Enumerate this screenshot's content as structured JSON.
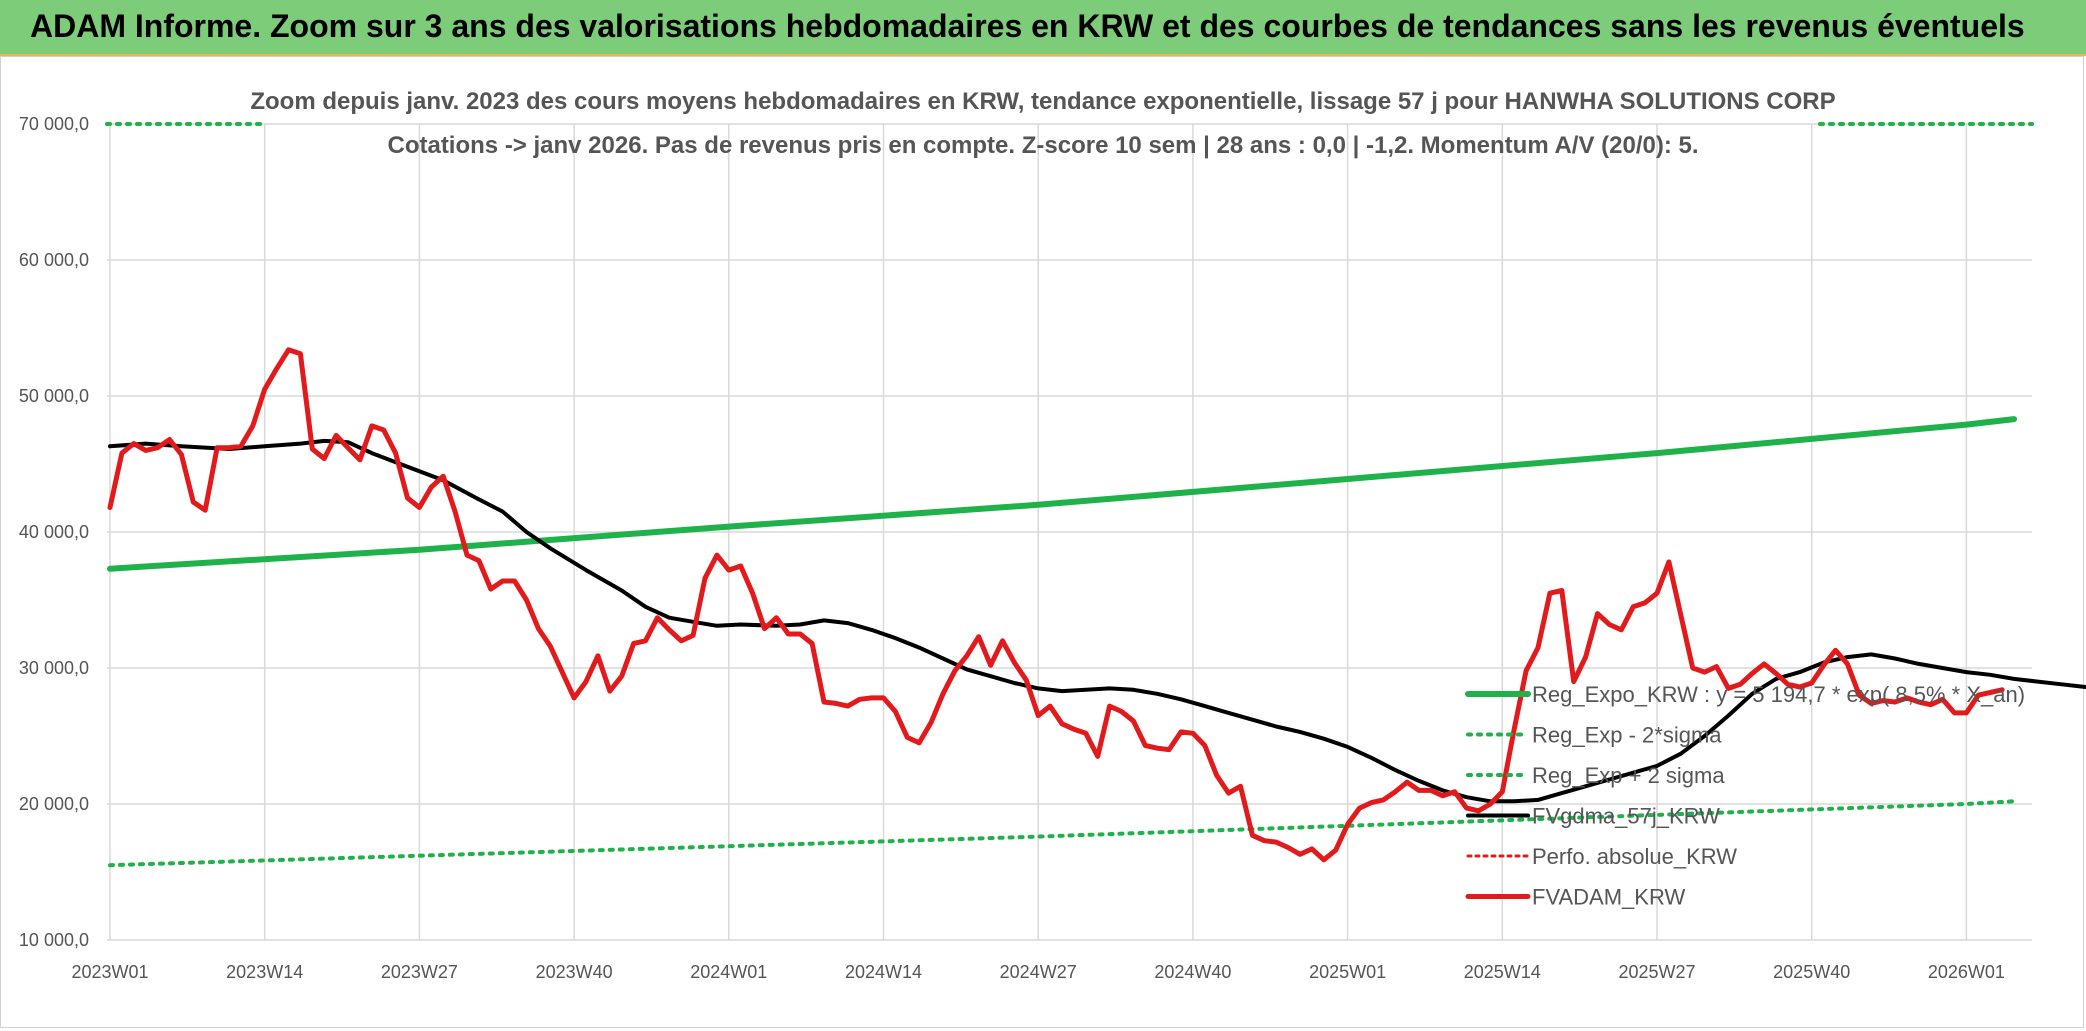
{
  "banner": {
    "title": "ADAM Informe. Zoom sur 3 ans des valorisations hebdomadaires en KRW et des courbes de tendances sans les revenus éventuels"
  },
  "colors": {
    "banner_bg": "#7ccc7a",
    "reg_expo": "#1fb14a",
    "reg_band": "#1fb14a",
    "fvgdma": "#000000",
    "perfo": "#e31a1c",
    "fvadam": "#e31a1c"
  },
  "chart_data": {
    "type": "line",
    "title_lines": [
      "Zoom depuis janv. 2023 des cours moyens hebdomadaires en KRW, tendance exponentielle, lissage 57 j pour HANWHA SOLUTIONS CORP",
      "Cotations -> janv 2026. Pas de revenus pris en compte. Z-score 10 sem | 28 ans : 0,0 | -1,2. Momentum A/V (20/0): 5."
    ],
    "x_tick_labels": [
      "2023W01",
      "2023W14",
      "2023W27",
      "2023W40",
      "2024W01",
      "2024W14",
      "2024W27",
      "2024W40",
      "2025W01",
      "2025W14",
      "2025W27",
      "2025W40",
      "2026W01"
    ],
    "y_tick_labels": [
      "10 000,0",
      "20 000,0",
      "30 000,0",
      "40 000,0",
      "50 000,0",
      "60 000,0",
      "70 000,0"
    ],
    "ylim": [
      10000,
      70000
    ],
    "x_range_weeks": [
      0,
      160
    ],
    "grid": true,
    "legend_position": "right",
    "series": [
      {
        "name": "Reg_Expo_KRW : y = 5 194,7 * exp( 8,5% * X_an)",
        "style": "solid-thick",
        "points": [
          [
            0,
            37300
          ],
          [
            26,
            38700
          ],
          [
            52,
            40400
          ],
          [
            78,
            42000
          ],
          [
            104,
            43900
          ],
          [
            130,
            45800
          ],
          [
            156,
            47900
          ],
          [
            160,
            48300
          ]
        ]
      },
      {
        "name": "Reg_Exp - 2*sigma",
        "style": "dotted",
        "points": [
          [
            0,
            15500
          ],
          [
            26,
            16200
          ],
          [
            52,
            16900
          ],
          [
            78,
            17600
          ],
          [
            104,
            18400
          ],
          [
            130,
            19200
          ],
          [
            156,
            20000
          ],
          [
            160,
            20200
          ]
        ]
      },
      {
        "name": "Reg_Exp + 2 sigma",
        "style": "dotted",
        "points": [
          [
            0,
            70000
          ],
          [
            160,
            70000
          ]
        ]
      },
      {
        "name": "FVgdma_57j_KRW",
        "style": "solid",
        "points": [
          [
            0,
            46300
          ],
          [
            3,
            46500
          ],
          [
            6,
            46300
          ],
          [
            10,
            46100
          ],
          [
            13,
            46300
          ],
          [
            16,
            46500
          ],
          [
            18,
            46700
          ],
          [
            20,
            46600
          ],
          [
            22,
            45800
          ],
          [
            25,
            44800
          ],
          [
            28,
            43800
          ],
          [
            31,
            42400
          ],
          [
            33,
            41500
          ],
          [
            35,
            40000
          ],
          [
            37,
            38800
          ],
          [
            40,
            37200
          ],
          [
            43,
            35700
          ],
          [
            45,
            34500
          ],
          [
            47,
            33700
          ],
          [
            49,
            33400
          ],
          [
            51,
            33100
          ],
          [
            53,
            33200
          ],
          [
            56,
            33100
          ],
          [
            58,
            33200
          ],
          [
            60,
            33500
          ],
          [
            62,
            33300
          ],
          [
            64,
            32800
          ],
          [
            66,
            32200
          ],
          [
            68,
            31500
          ],
          [
            70,
            30700
          ],
          [
            72,
            29900
          ],
          [
            74,
            29400
          ],
          [
            76,
            28900
          ],
          [
            78,
            28500
          ],
          [
            80,
            28300
          ],
          [
            82,
            28400
          ],
          [
            84,
            28500
          ],
          [
            86,
            28400
          ],
          [
            88,
            28100
          ],
          [
            90,
            27700
          ],
          [
            92,
            27200
          ],
          [
            94,
            26700
          ],
          [
            96,
            26200
          ],
          [
            98,
            25700
          ],
          [
            100,
            25300
          ],
          [
            102,
            24800
          ],
          [
            104,
            24200
          ],
          [
            106,
            23400
          ],
          [
            108,
            22500
          ],
          [
            110,
            21700
          ],
          [
            112,
            21000
          ],
          [
            114,
            20500
          ],
          [
            116,
            20200
          ],
          [
            118,
            20200
          ],
          [
            120,
            20300
          ],
          [
            122,
            20800
          ],
          [
            124,
            21300
          ],
          [
            126,
            21800
          ],
          [
            128,
            22300
          ],
          [
            130,
            22800
          ],
          [
            132,
            23700
          ],
          [
            134,
            25000
          ],
          [
            136,
            26500
          ],
          [
            138,
            28100
          ],
          [
            140,
            29200
          ],
          [
            142,
            29700
          ],
          [
            144,
            30400
          ],
          [
            146,
            30800
          ],
          [
            148,
            31000
          ],
          [
            150,
            30700
          ],
          [
            152,
            30300
          ],
          [
            154,
            30000
          ],
          [
            156,
            29700
          ],
          [
            158,
            29500
          ],
          [
            160,
            29200
          ],
          [
            162,
            29000
          ],
          [
            164,
            28800
          ],
          [
            166,
            28600
          ],
          [
            168,
            28400
          ],
          [
            170,
            28300
          ],
          [
            172,
            28300
          ],
          [
            174,
            28300
          ]
        ]
      },
      {
        "name": "Perfo. absolue_KRW",
        "style": "dotted",
        "points": []
      },
      {
        "name": "FVADAM_KRW",
        "style": "solid-thick",
        "points": [
          [
            0,
            41800
          ],
          [
            1,
            45800
          ],
          [
            2,
            46500
          ],
          [
            3,
            46000
          ],
          [
            4,
            46200
          ],
          [
            5,
            46800
          ],
          [
            6,
            45700
          ],
          [
            7,
            42200
          ],
          [
            8,
            41600
          ],
          [
            9,
            46200
          ],
          [
            10,
            46200
          ],
          [
            11,
            46300
          ],
          [
            12,
            47800
          ],
          [
            13,
            50500
          ],
          [
            14,
            52000
          ],
          [
            15,
            53400
          ],
          [
            16,
            53100
          ],
          [
            17,
            46100
          ],
          [
            18,
            45400
          ],
          [
            19,
            47100
          ],
          [
            20,
            46200
          ],
          [
            21,
            45300
          ],
          [
            22,
            47800
          ],
          [
            23,
            47500
          ],
          [
            24,
            45800
          ],
          [
            25,
            42500
          ],
          [
            26,
            41800
          ],
          [
            27,
            43300
          ],
          [
            28,
            44100
          ],
          [
            29,
            41500
          ],
          [
            30,
            38300
          ],
          [
            31,
            37900
          ],
          [
            32,
            35800
          ],
          [
            33,
            36400
          ],
          [
            34,
            36400
          ],
          [
            35,
            35000
          ],
          [
            36,
            32900
          ],
          [
            37,
            31600
          ],
          [
            38,
            29700
          ],
          [
            39,
            27800
          ],
          [
            40,
            29000
          ],
          [
            41,
            30900
          ],
          [
            42,
            28300
          ],
          [
            43,
            29400
          ],
          [
            44,
            31800
          ],
          [
            45,
            32000
          ],
          [
            46,
            33700
          ],
          [
            47,
            32800
          ],
          [
            48,
            32000
          ],
          [
            49,
            32400
          ],
          [
            50,
            36600
          ],
          [
            51,
            38300
          ],
          [
            52,
            37200
          ],
          [
            53,
            37500
          ],
          [
            54,
            35500
          ],
          [
            55,
            32900
          ],
          [
            56,
            33700
          ],
          [
            57,
            32500
          ],
          [
            58,
            32500
          ],
          [
            59,
            31800
          ],
          [
            60,
            27500
          ],
          [
            61,
            27400
          ],
          [
            62,
            27200
          ],
          [
            63,
            27700
          ],
          [
            64,
            27800
          ],
          [
            65,
            27800
          ],
          [
            66,
            26800
          ],
          [
            67,
            24900
          ],
          [
            68,
            24500
          ],
          [
            69,
            26000
          ],
          [
            70,
            28100
          ],
          [
            71,
            29800
          ],
          [
            72,
            30900
          ],
          [
            73,
            32300
          ],
          [
            74,
            30200
          ],
          [
            75,
            32000
          ],
          [
            76,
            30400
          ],
          [
            77,
            29100
          ],
          [
            78,
            26500
          ],
          [
            79,
            27200
          ],
          [
            80,
            25900
          ],
          [
            81,
            25500
          ],
          [
            82,
            25200
          ],
          [
            83,
            23500
          ],
          [
            84,
            27200
          ],
          [
            85,
            26800
          ],
          [
            86,
            26100
          ],
          [
            87,
            24300
          ],
          [
            88,
            24100
          ],
          [
            89,
            24000
          ],
          [
            90,
            25300
          ],
          [
            91,
            25200
          ],
          [
            92,
            24300
          ],
          [
            93,
            22100
          ],
          [
            94,
            20800
          ],
          [
            95,
            21300
          ],
          [
            96,
            17700
          ],
          [
            97,
            17300
          ],
          [
            98,
            17200
          ],
          [
            99,
            16800
          ],
          [
            100,
            16300
          ],
          [
            101,
            16700
          ],
          [
            102,
            15900
          ],
          [
            103,
            16600
          ],
          [
            104,
            18500
          ],
          [
            105,
            19700
          ],
          [
            106,
            20100
          ],
          [
            107,
            20300
          ],
          [
            108,
            20900
          ],
          [
            109,
            21600
          ],
          [
            110,
            21000
          ],
          [
            111,
            21000
          ],
          [
            112,
            20600
          ],
          [
            113,
            20900
          ],
          [
            114,
            19700
          ],
          [
            115,
            19500
          ],
          [
            116,
            20000
          ],
          [
            117,
            20900
          ],
          [
            118,
            25500
          ],
          [
            119,
            29800
          ],
          [
            120,
            31500
          ],
          [
            121,
            35500
          ],
          [
            122,
            35700
          ],
          [
            123,
            29000
          ],
          [
            124,
            30800
          ],
          [
            125,
            34000
          ],
          [
            126,
            33200
          ],
          [
            127,
            32800
          ],
          [
            128,
            34500
          ],
          [
            129,
            34800
          ],
          [
            130,
            35500
          ],
          [
            131,
            37800
          ],
          [
            132,
            33900
          ],
          [
            133,
            30000
          ],
          [
            134,
            29700
          ],
          [
            135,
            30100
          ],
          [
            136,
            28500
          ],
          [
            137,
            28800
          ],
          [
            138,
            29600
          ],
          [
            139,
            30300
          ],
          [
            140,
            29600
          ],
          [
            141,
            28800
          ],
          [
            142,
            28600
          ],
          [
            143,
            28900
          ],
          [
            144,
            30200
          ],
          [
            145,
            31300
          ],
          [
            146,
            30300
          ],
          [
            147,
            28000
          ],
          [
            148,
            27400
          ],
          [
            149,
            27600
          ],
          [
            150,
            27500
          ],
          [
            151,
            27800
          ],
          [
            152,
            27500
          ],
          [
            153,
            27300
          ],
          [
            154,
            27700
          ],
          [
            155,
            26700
          ],
          [
            156,
            26700
          ],
          [
            157,
            28000
          ],
          [
            158,
            28200
          ],
          [
            159,
            28400
          ]
        ]
      }
    ]
  }
}
